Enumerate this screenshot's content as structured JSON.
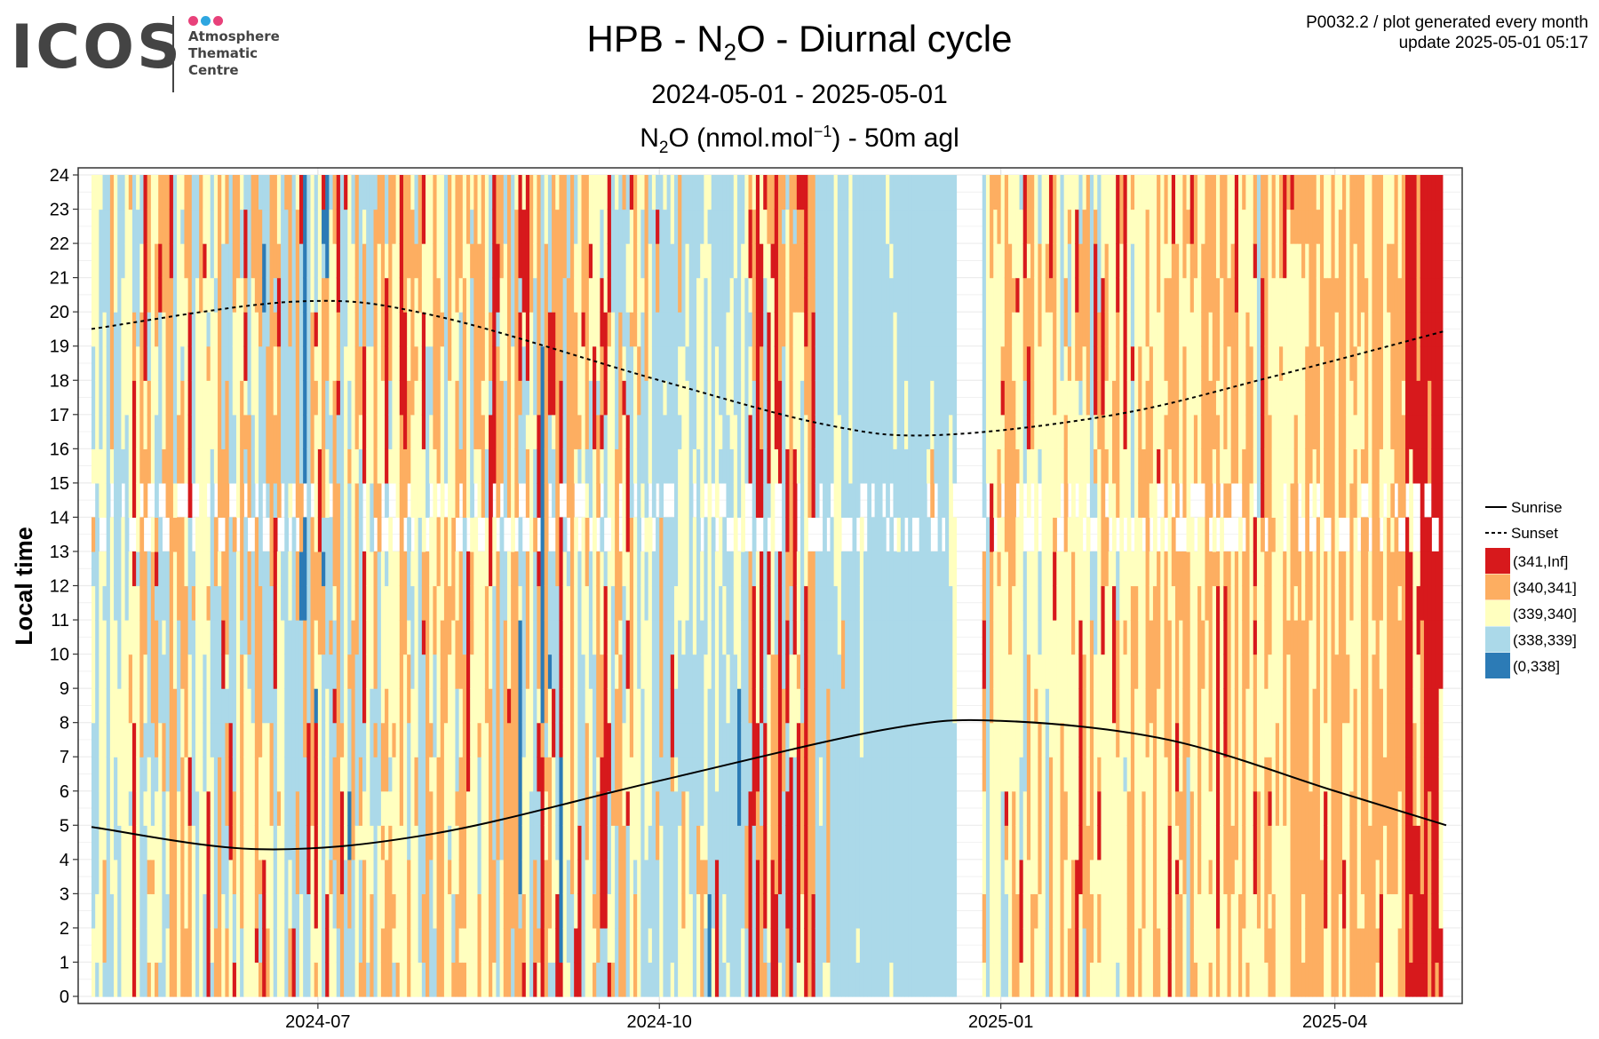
{
  "logo": {
    "text": "ICOS",
    "line1": "Atmosphere",
    "line2": "Thematic",
    "line3": "Centre",
    "dot_colors": [
      "#e8417a",
      "#2ea6e0",
      "#e8417a"
    ]
  },
  "header": {
    "title_pre": "HPB - N",
    "title_sub": "2",
    "title_post": "O - Diurnal cycle",
    "subtitle": "2024-05-01 - 2025-05-01",
    "label_pre": "N",
    "label_sub": "2",
    "label_mid": "O (nmol.mol",
    "label_sup": "−1",
    "label_post": ") - 50m agl",
    "meta_line1": "P0032.2 / plot generated every month",
    "meta_line2": "update  2025-05-01 05:17"
  },
  "chart_data": {
    "type": "heatmap",
    "x_start": "2024-05-01",
    "x_end": "2025-05-01",
    "x_ticks": [
      "2024-07",
      "2024-10",
      "2025-01",
      "2025-04"
    ],
    "x_tick_dates": [
      "2024-07-01",
      "2024-10-01",
      "2025-01-01",
      "2025-04-01"
    ],
    "y_label": "Local time",
    "y_ticks": [
      0,
      1,
      2,
      3,
      4,
      5,
      6,
      7,
      8,
      9,
      10,
      11,
      12,
      13,
      14,
      15,
      16,
      17,
      18,
      19,
      20,
      21,
      22,
      23,
      24
    ],
    "ylim": [
      0,
      24
    ],
    "grid": true,
    "legend_position": "right",
    "bins": [
      {
        "label": "(341,Inf]",
        "color": "#d7191c"
      },
      {
        "label": "(340,341]",
        "color": "#fdae61"
      },
      {
        "label": "(339,340]",
        "color": "#ffffbf"
      },
      {
        "label": "(338,339]",
        "color": "#abd9e9"
      },
      {
        "label": "(0,338]",
        "color": "#2c7bb6"
      }
    ],
    "lines": [
      {
        "name": "Sunrise",
        "style": "solid",
        "dates": [
          "2024-05-01",
          "2024-06-15",
          "2024-08-01",
          "2024-10-01",
          "2024-12-01",
          "2025-01-01",
          "2025-02-15",
          "2025-04-01",
          "2025-05-01"
        ],
        "hours": [
          4.95,
          4.3,
          4.75,
          6.3,
          7.8,
          8.05,
          7.5,
          6.0,
          5.0
        ]
      },
      {
        "name": "Sunset",
        "style": "dashed",
        "dates": [
          "2024-05-01",
          "2024-06-25",
          "2024-08-01",
          "2024-10-01",
          "2024-11-15",
          "2024-12-15",
          "2025-02-01",
          "2025-03-15",
          "2025-05-01"
        ],
        "hours": [
          19.5,
          20.3,
          19.9,
          18.0,
          16.7,
          16.4,
          17.0,
          18.1,
          19.45
        ]
      }
    ],
    "periods": [
      {
        "from": "2024-05-01",
        "to": "2024-05-12",
        "weights": [
          0.02,
          0.15,
          0.5,
          0.33,
          0
        ]
      },
      {
        "from": "2024-05-12",
        "to": "2024-06-10",
        "weights": [
          0.06,
          0.24,
          0.44,
          0.26,
          0
        ]
      },
      {
        "from": "2024-06-10",
        "to": "2024-07-15",
        "weights": [
          0.07,
          0.3,
          0.28,
          0.33,
          0.02
        ]
      },
      {
        "from": "2024-07-15",
        "to": "2024-08-20",
        "weights": [
          0.05,
          0.35,
          0.43,
          0.17,
          0
        ]
      },
      {
        "from": "2024-08-20",
        "to": "2024-09-25",
        "weights": [
          0.09,
          0.3,
          0.28,
          0.31,
          0.02
        ]
      },
      {
        "from": "2024-09-25",
        "to": "2024-10-25",
        "weights": [
          0.01,
          0.05,
          0.32,
          0.61,
          0.01
        ]
      },
      {
        "from": "2024-10-25",
        "to": "2024-11-12",
        "weights": [
          0.28,
          0.36,
          0.17,
          0.19,
          0
        ]
      },
      {
        "from": "2024-11-12",
        "to": "2024-12-20",
        "weights": [
          0,
          0.02,
          0.1,
          0.88,
          0
        ]
      },
      {
        "from": "2024-12-27",
        "to": "2025-02-10",
        "weights": [
          0.03,
          0.28,
          0.62,
          0.07,
          0
        ]
      },
      {
        "from": "2025-02-10",
        "to": "2025-03-20",
        "weights": [
          0.05,
          0.43,
          0.5,
          0.02,
          0
        ]
      },
      {
        "from": "2025-03-20",
        "to": "2025-04-20",
        "weights": [
          0.02,
          0.62,
          0.36,
          0,
          0
        ]
      },
      {
        "from": "2025-04-20",
        "to": "2025-04-30",
        "weights": [
          0.72,
          0.18,
          0.1,
          0,
          0
        ]
      }
    ]
  }
}
